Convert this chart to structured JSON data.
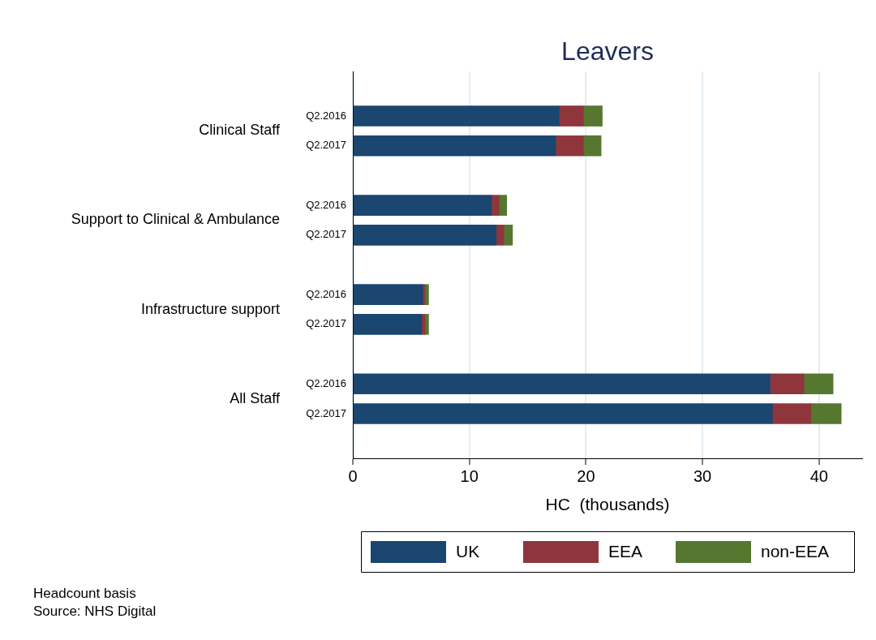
{
  "chart_data": {
    "type": "bar",
    "title": "Leavers",
    "xlabel": "HC  (thousands)",
    "orientation": "horizontal",
    "stacked": true,
    "categories": [
      "Q2.2016",
      "Q2.2017",
      "Q2.2016",
      "Q2.2017",
      "Q2.2016",
      "Q2.2017",
      "Q2.2016",
      "Q2.2017"
    ],
    "series": [
      {
        "name": "UK",
        "color": "#1a4670",
        "values": [
          17.7,
          17.4,
          11.9,
          12.3,
          6.0,
          5.9,
          35.8,
          36.0
        ]
      },
      {
        "name": "EEA",
        "color": "#8f363d",
        "values": [
          2.1,
          2.4,
          0.65,
          0.65,
          0.2,
          0.3,
          2.9,
          3.3
        ]
      },
      {
        "name": "non-EEA",
        "color": "#55772f",
        "values": [
          1.6,
          1.5,
          0.65,
          0.75,
          0.3,
          0.3,
          2.5,
          2.6
        ]
      }
    ],
    "xlim": [
      0,
      43.7
    ],
    "xticks": [
      0,
      10,
      20,
      30,
      40
    ],
    "grid": "x",
    "legend": "bottom",
    "annotations": [
      "Clinical Staff",
      "Support to Clinical & Ambulance",
      "Infrastructure support",
      "All Staff",
      "Headcount basis",
      "Source: NHS Digital"
    ]
  }
}
